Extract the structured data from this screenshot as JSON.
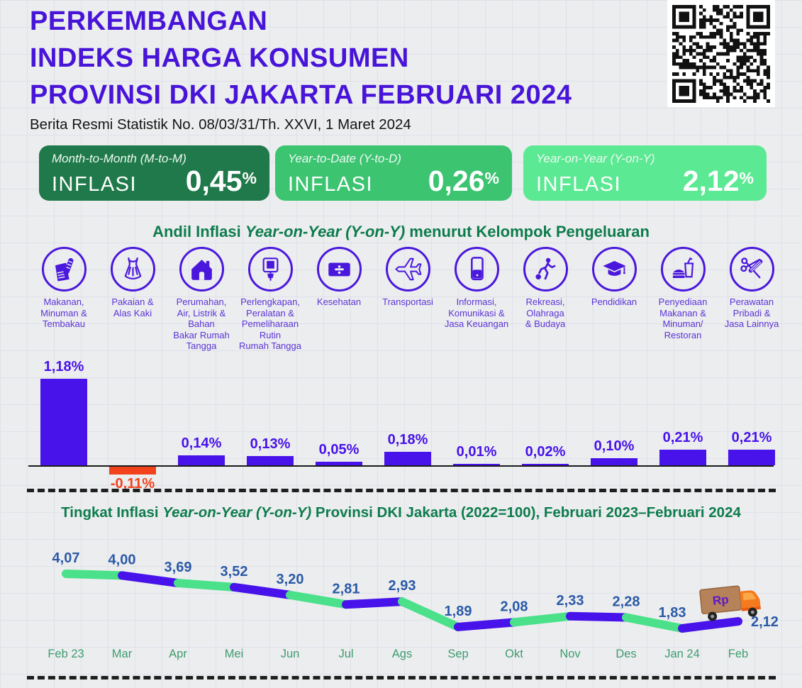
{
  "header": {
    "title_lines": [
      "PERKEMBANGAN",
      "INDEKS HARGA KONSUMEN",
      "PROVINSI DKI JAKARTA FEBRUARI 2024"
    ],
    "subtitle": "Berita Resmi Statistik No. 08/03/31/Th. XXVI, 1 Maret 2024",
    "title_color": "#4714d8"
  },
  "summary_cards": [
    {
      "period_label": "Month-to-Month (M-to-M)",
      "metric": "INFLASI",
      "value": "0,45",
      "unit": "%",
      "bg": "#20794a"
    },
    {
      "period_label": "Year-to-Date (Y-to-D)",
      "metric": "INFLASI",
      "value": "0,26",
      "unit": "%",
      "bg": "#3cc471"
    },
    {
      "period_label": "Year-on-Year (Y-on-Y)",
      "metric": "INFLASI",
      "value": "2,12",
      "unit": "%",
      "bg": "#5ce993"
    }
  ],
  "chart_data": [
    {
      "type": "bar",
      "title": "Andil Inflasi Year-on-Year (Y-on-Y) menurut Kelompok Pengeluaran",
      "title_parts": {
        "prefix": "Andil Inflasi ",
        "italic": "Year-on-Year (Y-on-Y)",
        "suffix": " menurut Kelompok Pengeluaran"
      },
      "unit": "%",
      "bar_color": "#4713ea",
      "negative_color": "#f2421b",
      "categories": [
        {
          "label": "Makanan,\nMinuman &\nTembakau",
          "icon": "groceries-icon",
          "value": 1.18,
          "value_label": "1,18%"
        },
        {
          "label": "Pakaian &\nAlas Kaki",
          "icon": "clothing-icon",
          "value": -0.11,
          "value_label": "-0,11%"
        },
        {
          "label": "Perumahan,\nAir, Listrik &\nBahan\nBakar Rumah\nTangga",
          "icon": "housing-icon",
          "value": 0.14,
          "value_label": "0,14%"
        },
        {
          "label": "Perlengkapan,\nPeralatan &\nPemeliharaan\nRutin\nRumah Tangga",
          "icon": "household-equipment-icon",
          "value": 0.13,
          "value_label": "0,13%"
        },
        {
          "label": "Kesehatan",
          "icon": "health-icon",
          "value": 0.05,
          "value_label": "0,05%"
        },
        {
          "label": "Transportasi",
          "icon": "transport-icon",
          "value": 0.18,
          "value_label": "0,18%"
        },
        {
          "label": "Informasi,\nKomunikasi &\nJasa Keuangan",
          "icon": "communication-icon",
          "value": 0.01,
          "value_label": "0,01%"
        },
        {
          "label": "Rekreasi,\nOlahraga\n& Budaya",
          "icon": "recreation-icon",
          "value": 0.02,
          "value_label": "0,02%"
        },
        {
          "label": "Pendidikan",
          "icon": "education-icon",
          "value": 0.1,
          "value_label": "0,10%"
        },
        {
          "label": "Penyediaan\nMakanan &\nMinuman/\nRestoran",
          "icon": "restaurant-icon",
          "value": 0.21,
          "value_label": "0,21%"
        },
        {
          "label": "Perawatan\nPribadi &\nJasa Lainnya",
          "icon": "personal-care-icon",
          "value": 0.21,
          "value_label": "0,21%"
        }
      ]
    },
    {
      "type": "line",
      "title": "Tingkat Inflasi Year-on-Year (Y-on-Y) Provinsi DKI Jakarta (2022=100), Februari 2023–Februari 2024",
      "title_parts": {
        "prefix": "Tingkat Inflasi ",
        "italic": "Year-on-Year (Y-on-Y)",
        "suffix": " Provinsi DKI Jakarta (2022=100), Februari 2023–Februari 2024"
      },
      "x": [
        "Feb 23",
        "Mar",
        "Apr",
        "Mei",
        "Jun",
        "Jul",
        "Ags",
        "Sep",
        "Okt",
        "Nov",
        "Des",
        "Jan 24",
        "Feb"
      ],
      "values": [
        4.07,
        4.0,
        3.69,
        3.52,
        3.2,
        2.81,
        2.93,
        1.89,
        2.08,
        2.33,
        2.28,
        1.83,
        2.12
      ],
      "point_labels": [
        "4,07",
        "4,00",
        "3,69",
        "3,52",
        "3,20",
        "2,81",
        "2,93",
        "1,89",
        "2,08",
        "2,33",
        "2,28",
        "1,83",
        "2,12"
      ],
      "segment_colors_alternate": [
        "#4ae18a",
        "#4713ea"
      ],
      "point_label_color": "#2b5aa7",
      "month_label_color": "#3e9c6e",
      "truck_label": "Rp"
    }
  ]
}
